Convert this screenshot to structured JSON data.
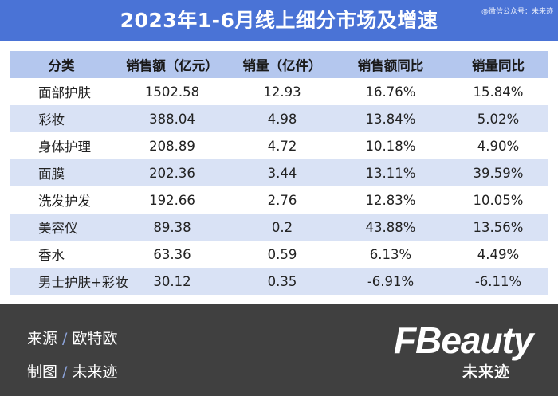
{
  "title": "2023年1-6月线上细分市场及增速",
  "weixin_tag": "@微信公众号：未来迹",
  "table": {
    "headers": [
      "分类",
      "销售额（亿元）",
      "销量（亿件）",
      "销售额同比",
      "销量同比"
    ],
    "rows": [
      [
        "面部护肤",
        "1502.58",
        "12.93",
        "16.76%",
        "15.84%"
      ],
      [
        "彩妆",
        "388.04",
        "4.98",
        "13.84%",
        "5.02%"
      ],
      [
        "身体护理",
        "208.89",
        "4.72",
        "10.18%",
        "4.90%"
      ],
      [
        "面膜",
        "202.36",
        "3.44",
        "13.11%",
        "39.59%"
      ],
      [
        "洗发护发",
        "192.66",
        "2.76",
        "12.83%",
        "10.05%"
      ],
      [
        "美容仪",
        "89.38",
        "0.2",
        "43.88%",
        "13.56%"
      ],
      [
        "香水",
        "63.36",
        "0.59",
        "6.13%",
        "4.49%"
      ],
      [
        "男士护肤+彩妆",
        "30.12",
        "0.35",
        "-6.91%",
        "-6.11%"
      ]
    ]
  },
  "footer": {
    "source_label": "来源",
    "source_value": "欧特欧",
    "maker_label": "制图",
    "maker_value": "未来迹",
    "slash": "/",
    "logo_word": "FBeauty",
    "logo_sub": "未来迹"
  }
}
